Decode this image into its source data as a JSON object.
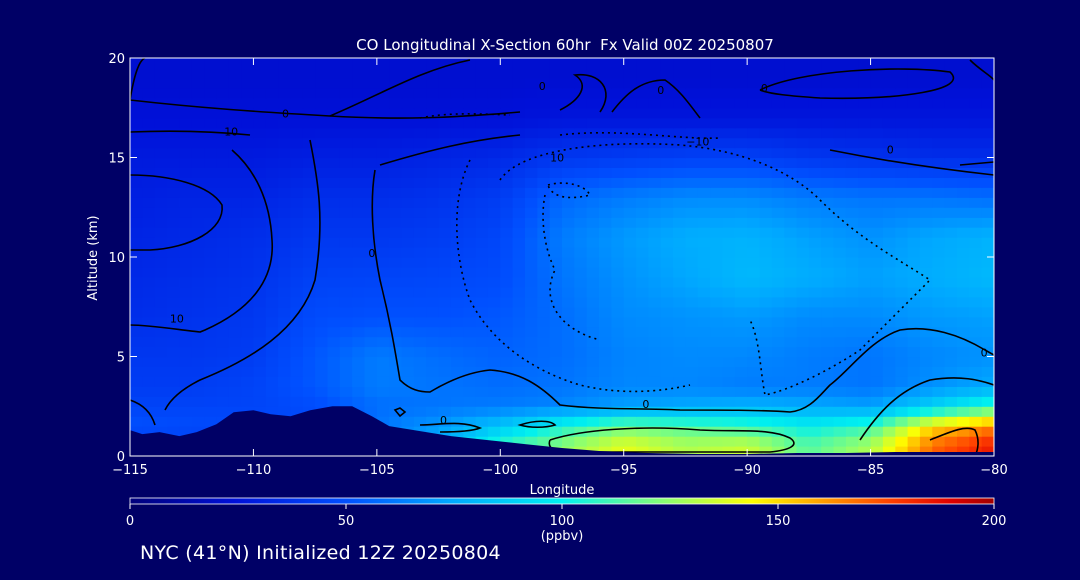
{
  "chart_data": {
    "type": "heatmap",
    "title": "CO Longitudinal X-Section 60hr  Fx Valid 00Z 20250807",
    "xlabel": "Longitude",
    "ylabel": "Altitude (km)",
    "xlim": [
      -115,
      -80
    ],
    "ylim": [
      0,
      20
    ],
    "x_ticks": [
      -115,
      -110,
      -105,
      -100,
      -95,
      -90,
      -85,
      -80
    ],
    "x_tick_labels": [
      "−115",
      "−110",
      "−105",
      "−100",
      "−95",
      "−90",
      "−85",
      "−80"
    ],
    "y_ticks": [
      0,
      5,
      10,
      15,
      20
    ],
    "y_tick_labels": [
      "0",
      "5",
      "10",
      "15",
      "20"
    ],
    "colorbar": {
      "min": 0,
      "max": 200,
      "ticks": [
        0,
        50,
        100,
        150,
        200
      ],
      "tick_labels": [
        "0",
        "50",
        "100",
        "150",
        "200"
      ],
      "unit": "(ppbv)"
    },
    "contour_labels": [
      {
        "text": "0",
        "lon": -98.3,
        "alt": 18.4
      },
      {
        "text": "0",
        "lon": -93.5,
        "alt": 18.2
      },
      {
        "text": "0",
        "lon": -89.3,
        "alt": 18.3
      },
      {
        "text": "0",
        "lon": -108.7,
        "alt": 17.0
      },
      {
        "text": "10",
        "lon": -110.9,
        "alt": 16.1
      },
      {
        "text": "−10",
        "lon": -92.0,
        "alt": 15.6
      },
      {
        "text": "10",
        "lon": -97.7,
        "alt": 14.8
      },
      {
        "text": "0",
        "lon": -84.2,
        "alt": 15.2
      },
      {
        "text": "0",
        "lon": -105.2,
        "alt": 10.0
      },
      {
        "text": "10",
        "lon": -113.1,
        "alt": 6.7
      },
      {
        "text": "0",
        "lon": -80.4,
        "alt": 5.0
      },
      {
        "text": "0",
        "lon": -94.1,
        "alt": 2.4
      },
      {
        "text": "0",
        "lon": -102.3,
        "alt": 1.6
      }
    ],
    "terrain_alt_km": [
      [
        -115,
        1.3
      ],
      [
        -114.5,
        1.1
      ],
      [
        -113.8,
        1.2
      ],
      [
        -113.0,
        1.0
      ],
      [
        -112.3,
        1.2
      ],
      [
        -111.5,
        1.6
      ],
      [
        -110.8,
        2.2
      ],
      [
        -110.0,
        2.3
      ],
      [
        -109.3,
        2.1
      ],
      [
        -108.5,
        2.0
      ],
      [
        -107.7,
        2.3
      ],
      [
        -106.8,
        2.5
      ],
      [
        -106.0,
        2.5
      ],
      [
        -105.2,
        2.0
      ],
      [
        -104.5,
        1.5
      ],
      [
        -103.5,
        1.3
      ],
      [
        -102.0,
        1.0
      ],
      [
        -100.5,
        0.8
      ],
      [
        -99.0,
        0.6
      ],
      [
        -97.5,
        0.4
      ],
      [
        -96.0,
        0.25
      ],
      [
        -94.0,
        0.15
      ],
      [
        -92.0,
        0.1
      ],
      [
        -90.0,
        0.1
      ],
      [
        -88.0,
        0.15
      ],
      [
        -86.0,
        0.15
      ],
      [
        -84.0,
        0.2
      ],
      [
        -82.0,
        0.2
      ],
      [
        -80.0,
        0.2
      ]
    ],
    "co_ppbv_grid": {
      "lon": [
        -115,
        -112.5,
        -110,
        -107.5,
        -105,
        -102.5,
        -100,
        -97.5,
        -95,
        -92.5,
        -90,
        -87.5,
        -85,
        -82.5,
        -80
      ],
      "alt": [
        0.5,
        1.5,
        2.5,
        3.5,
        5,
        7,
        9,
        11,
        13,
        15,
        17,
        19
      ],
      "values": [
        [
          40,
          40,
          40,
          40,
          60,
          80,
          110,
          125,
          140,
          130,
          135,
          115,
          130,
          170,
          185
        ],
        [
          50,
          48,
          48,
          48,
          60,
          70,
          85,
          105,
          120,
          115,
          110,
          100,
          110,
          150,
          165
        ],
        [
          45,
          45,
          45,
          48,
          58,
          60,
          62,
          65,
          72,
          75,
          78,
          75,
          72,
          90,
          110
        ],
        [
          42,
          42,
          45,
          52,
          62,
          60,
          58,
          60,
          65,
          65,
          62,
          62,
          60,
          68,
          75
        ],
        [
          40,
          40,
          42,
          52,
          62,
          58,
          55,
          58,
          64,
          66,
          65,
          62,
          60,
          65,
          68
        ],
        [
          36,
          38,
          40,
          48,
          50,
          50,
          52,
          58,
          66,
          68,
          70,
          66,
          66,
          70,
          72
        ],
        [
          34,
          36,
          38,
          44,
          45,
          46,
          48,
          60,
          68,
          74,
          80,
          76,
          72,
          76,
          80
        ],
        [
          32,
          34,
          36,
          40,
          40,
          42,
          46,
          62,
          70,
          76,
          78,
          72,
          68,
          74,
          78
        ],
        [
          30,
          32,
          32,
          36,
          36,
          38,
          42,
          56,
          62,
          66,
          66,
          62,
          60,
          60,
          58
        ],
        [
          28,
          28,
          28,
          30,
          30,
          32,
          34,
          40,
          42,
          44,
          44,
          40,
          38,
          36,
          36
        ],
        [
          24,
          24,
          24,
          24,
          24,
          24,
          24,
          26,
          26,
          26,
          26,
          26,
          26,
          26,
          26
        ],
        [
          22,
          22,
          22,
          22,
          22,
          22,
          22,
          22,
          22,
          22,
          22,
          22,
          22,
          22,
          22
        ]
      ]
    }
  },
  "footer": {
    "text": "NYC (41°N) Initialized 12Z 20250804"
  },
  "colors": {
    "background": "#000066",
    "contour": "#000000",
    "axes": "#ffffff"
  }
}
